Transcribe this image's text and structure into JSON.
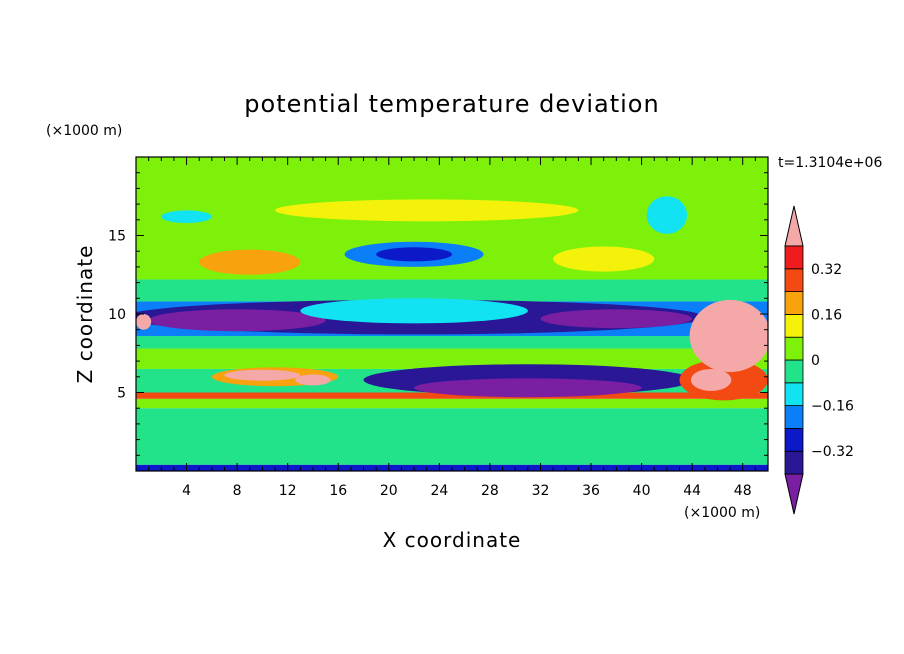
{
  "chart_data": {
    "type": "heatmap",
    "title": "potential temperature deviation",
    "xlabel": "X coordinate",
    "ylabel": "Z coordinate",
    "x_unit": "(×1000 m)",
    "y_unit": "(×1000 m)",
    "time_label": "t=1.3104e+06",
    "xlim": [
      0,
      50
    ],
    "ylim": [
      0,
      20
    ],
    "x_ticks": [
      "4",
      "8",
      "12",
      "16",
      "20",
      "24",
      "28",
      "32",
      "36",
      "40",
      "44",
      "48"
    ],
    "y_ticks": [
      "5",
      "10",
      "15"
    ],
    "colorbar": {
      "levels": [
        -0.4,
        -0.32,
        -0.24,
        -0.16,
        -0.08,
        0,
        0.08,
        0.16,
        0.24,
        0.32,
        0.4
      ],
      "labels": [
        "0.32",
        "0.16",
        "0",
        "−0.16",
        "−0.32"
      ],
      "colors_low_to_high": [
        "#7a1fa2",
        "#2a1796",
        "#0b19c8",
        "#0a7ff7",
        "#12e3f3",
        "#22e38a",
        "#7ef10a",
        "#f4f20a",
        "#f8a20e",
        "#f24a12",
        "#ee1c1c",
        "#f5a8a8"
      ]
    },
    "bands": [
      {
        "x0": 0,
        "x1": 50,
        "z0": 0,
        "z1": 0.4,
        "level": "#0b19c8"
      },
      {
        "x0": 0,
        "x1": 50,
        "z0": 0.4,
        "z1": 4.0,
        "level": "#22e38a"
      },
      {
        "x0": 0,
        "x1": 50,
        "z0": 4.0,
        "z1": 4.6,
        "level": "#7ef10a"
      },
      {
        "x0": 0,
        "x1": 50,
        "z0": 4.6,
        "z1": 5.0,
        "level": "#f24a12"
      },
      {
        "x0": 0,
        "x1": 50,
        "z0": 5.0,
        "z1": 6.5,
        "level": "#22e38a"
      },
      {
        "x0": 0,
        "x1": 50,
        "z0": 6.5,
        "z1": 7.8,
        "level": "#7ef10a"
      },
      {
        "x0": 0,
        "x1": 50,
        "z0": 7.8,
        "z1": 8.6,
        "level": "#22e38a"
      },
      {
        "x0": 0,
        "x1": 50,
        "z0": 8.6,
        "z1": 10.8,
        "level": "#0a7ff7"
      },
      {
        "x0": 0,
        "x1": 50,
        "z0": 10.8,
        "z1": 12.2,
        "level": "#22e38a"
      },
      {
        "x0": 0,
        "x1": 50,
        "z0": 12.2,
        "z1": 20.0,
        "level": "#7ef10a"
      }
    ],
    "features": [
      {
        "name": "upper-cold-band",
        "cx": 22,
        "cz": 9.8,
        "rx": 23,
        "rz": 1.1,
        "level": "#2a1796"
      },
      {
        "name": "upper-cold-core-west",
        "cx": 8,
        "cz": 9.6,
        "rx": 7,
        "rz": 0.7,
        "level": "#7a1fa2"
      },
      {
        "name": "upper-cold-core-east",
        "cx": 38,
        "cz": 9.7,
        "rx": 6,
        "rz": 0.6,
        "level": "#7a1fa2"
      },
      {
        "name": "cyan-interior",
        "cx": 22,
        "cz": 10.2,
        "rx": 9,
        "rz": 0.8,
        "level": "#12e3f3"
      },
      {
        "name": "lower-cold-band",
        "cx": 31,
        "cz": 5.8,
        "rx": 13,
        "rz": 1.0,
        "level": "#2a1796"
      },
      {
        "name": "lower-cold-core",
        "cx": 31,
        "cz": 5.3,
        "rx": 9,
        "rz": 0.6,
        "level": "#7a1fa2"
      },
      {
        "name": "upper-cold-blob",
        "cx": 22,
        "cz": 13.8,
        "rx": 5.5,
        "rz": 0.8,
        "level": "#0a7ff7"
      },
      {
        "name": "upper-cold-blob-core",
        "cx": 22,
        "cz": 13.8,
        "rx": 3,
        "rz": 0.45,
        "level": "#0b19c8"
      },
      {
        "name": "warm-arc-west",
        "cx": 9,
        "cz": 13.3,
        "rx": 4,
        "rz": 0.8,
        "level": "#f8a20e"
      },
      {
        "name": "warm-arc-east",
        "cx": 37,
        "cz": 13.5,
        "rx": 4,
        "rz": 0.8,
        "level": "#f4f20a"
      },
      {
        "name": "yellow-ring-top",
        "cx": 23,
        "cz": 16.6,
        "rx": 12,
        "rz": 0.7,
        "level": "#f4f20a"
      },
      {
        "name": "cyan-upper-left",
        "cx": 4,
        "cz": 16.2,
        "rx": 2,
        "rz": 0.4,
        "level": "#12e3f3"
      },
      {
        "name": "cyan-upper-right",
        "cx": 42,
        "cz": 16.3,
        "rx": 1.6,
        "rz": 1.2,
        "level": "#12e3f3"
      },
      {
        "name": "warm-mid-west",
        "cx": 11,
        "cz": 6.0,
        "rx": 5,
        "rz": 0.6,
        "level": "#f8a20e"
      },
      {
        "name": "pink-mid-west",
        "cx": 10,
        "cz": 6.1,
        "rx": 3,
        "rz": 0.35,
        "level": "#f5a8a8"
      },
      {
        "name": "pink-mid-west-2",
        "cx": 14,
        "cz": 5.8,
        "rx": 1.4,
        "rz": 0.35,
        "level": "#f5a8a8"
      },
      {
        "name": "warm-east-edge",
        "cx": 46.5,
        "cz": 5.8,
        "rx": 3.5,
        "rz": 1.3,
        "level": "#f24a12"
      },
      {
        "name": "pink-plume-east",
        "cx": 47,
        "cz": 8.6,
        "rx": 3.2,
        "rz": 2.3,
        "level": "#f5a8a8"
      },
      {
        "name": "pink-plume-east-low",
        "cx": 45.5,
        "cz": 5.8,
        "rx": 1.6,
        "rz": 0.7,
        "level": "#f5a8a8"
      },
      {
        "name": "pink-west-edge",
        "cx": 0.6,
        "cz": 9.5,
        "rx": 0.6,
        "rz": 0.5,
        "level": "#f5a8a8"
      }
    ]
  }
}
